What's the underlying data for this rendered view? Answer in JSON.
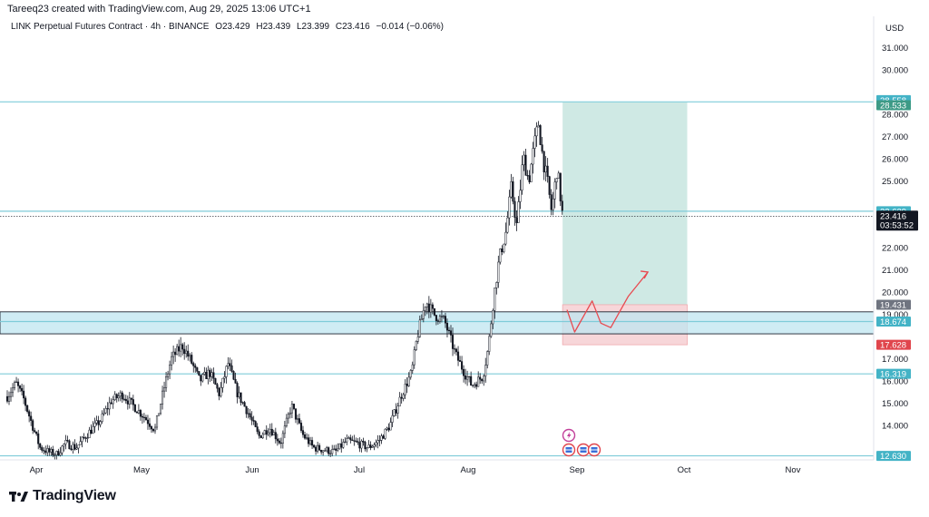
{
  "attribution": "Tareeq23 created with TradingView.com, Aug 29, 2025 13:06 UTC+1",
  "legend": {
    "symbol": "LINK Perpetual Futures Contract · 4h · BINANCE",
    "open": "O23.429",
    "high": "H23.439",
    "low": "L23.399",
    "close": "C23.416",
    "change": "−0.014 (−0.06%)"
  },
  "brand": "TradingView",
  "colors": {
    "candle": "#131722",
    "hline": "#7fcbd9",
    "zone_fill": "#bfe6f0",
    "target_fill": "#cfe9e4",
    "stop_fill": "#f7d6d9",
    "arrow": "#e8494f",
    "label_teal": "#43b3c6",
    "label_green": "#3d9a86",
    "label_red": "#e0454c",
    "label_gray": "#6f7480",
    "label_dark": "#131722"
  },
  "chart_data": {
    "type": "candlestick",
    "currency": "USD",
    "y_ticks": [
      "31.000",
      "30.000",
      "28.000",
      "27.000",
      "26.000",
      "25.000",
      "22.000",
      "21.000",
      "20.000",
      "19.000",
      "17.000",
      "16.000",
      "15.000",
      "14.000"
    ],
    "x_ticks": [
      "Apr",
      "May",
      "Jun",
      "Jul",
      "Aug",
      "Sep",
      "Oct",
      "Nov"
    ],
    "ylim": [
      12.4,
      31.7
    ],
    "price_path": [
      {
        "t": 0.0,
        "v": 15.3
      },
      {
        "t": 0.8,
        "v": 15.9
      },
      {
        "t": 1.5,
        "v": 15.2
      },
      {
        "t": 2.3,
        "v": 14.0
      },
      {
        "t": 3.0,
        "v": 13.0
      },
      {
        "t": 3.8,
        "v": 12.8
      },
      {
        "t": 4.5,
        "v": 12.7
      },
      {
        "t": 5.3,
        "v": 13.2
      },
      {
        "t": 6.3,
        "v": 13.0
      },
      {
        "t": 7.5,
        "v": 13.7
      },
      {
        "t": 8.5,
        "v": 14.2
      },
      {
        "t": 9.5,
        "v": 15.1
      },
      {
        "t": 10.5,
        "v": 15.4
      },
      {
        "t": 11.5,
        "v": 14.9
      },
      {
        "t": 12.5,
        "v": 14.4
      },
      {
        "t": 13.5,
        "v": 13.8
      },
      {
        "t": 14.3,
        "v": 15.6
      },
      {
        "t": 15.0,
        "v": 17.0
      },
      {
        "t": 16.0,
        "v": 17.6
      },
      {
        "t": 16.8,
        "v": 16.9
      },
      {
        "t": 17.6,
        "v": 16.0
      },
      {
        "t": 18.5,
        "v": 16.4
      },
      {
        "t": 19.4,
        "v": 15.4
      },
      {
        "t": 20.2,
        "v": 16.8
      },
      {
        "t": 21.0,
        "v": 15.5
      },
      {
        "t": 22.0,
        "v": 14.6
      },
      {
        "t": 23.0,
        "v": 13.5
      },
      {
        "t": 24.0,
        "v": 13.9
      },
      {
        "t": 25.0,
        "v": 13.2
      },
      {
        "t": 26.0,
        "v": 14.9
      },
      {
        "t": 27.0,
        "v": 13.6
      },
      {
        "t": 28.0,
        "v": 13.0
      },
      {
        "t": 29.0,
        "v": 12.9
      },
      {
        "t": 30.0,
        "v": 12.8
      },
      {
        "t": 31.0,
        "v": 13.3
      },
      {
        "t": 32.0,
        "v": 13.2
      },
      {
        "t": 33.0,
        "v": 13.0
      },
      {
        "t": 34.0,
        "v": 13.3
      },
      {
        "t": 35.0,
        "v": 14.0
      },
      {
        "t": 36.0,
        "v": 15.3
      },
      {
        "t": 37.0,
        "v": 16.4
      },
      {
        "t": 37.5,
        "v": 18.0
      },
      {
        "t": 38.3,
        "v": 19.6
      },
      {
        "t": 39.0,
        "v": 19.0
      },
      {
        "t": 40.0,
        "v": 18.7
      },
      {
        "t": 41.0,
        "v": 17.2
      },
      {
        "t": 41.8,
        "v": 16.4
      },
      {
        "t": 42.5,
        "v": 15.8
      },
      {
        "t": 43.5,
        "v": 16.2
      },
      {
        "t": 44.0,
        "v": 17.5
      },
      {
        "t": 44.5,
        "v": 19.8
      },
      {
        "t": 45.0,
        "v": 21.5
      },
      {
        "t": 45.6,
        "v": 22.7
      },
      {
        "t": 46.1,
        "v": 24.7
      },
      {
        "t": 46.6,
        "v": 23.0
      },
      {
        "t": 47.2,
        "v": 26.1
      },
      {
        "t": 47.7,
        "v": 25.0
      },
      {
        "t": 48.2,
        "v": 26.6
      },
      {
        "t": 48.6,
        "v": 27.6
      },
      {
        "t": 49.0,
        "v": 26.0
      },
      {
        "t": 49.4,
        "v": 25.0
      },
      {
        "t": 49.8,
        "v": 23.6
      },
      {
        "t": 50.3,
        "v": 25.6
      },
      {
        "t": 50.8,
        "v": 23.416
      }
    ],
    "horizontal_levels": [
      28.558,
      23.639,
      18.674,
      16.319,
      12.63
    ],
    "support_zone": {
      "top": 19.11,
      "bottom": 18.12
    },
    "position": {
      "entry": 19.431,
      "target": 28.533,
      "stop": 17.628
    },
    "projection": [
      {
        "t": 51.2,
        "v": 19.2
      },
      {
        "t": 51.9,
        "v": 18.2
      },
      {
        "t": 53.5,
        "v": 19.6
      },
      {
        "t": 54.3,
        "v": 18.6
      },
      {
        "t": 55.2,
        "v": 18.4
      },
      {
        "t": 56.8,
        "v": 19.8
      },
      {
        "t": 58.6,
        "v": 20.9
      }
    ],
    "labels": [
      {
        "text": "28.558",
        "kind": "teal",
        "v": 28.558
      },
      {
        "text": "28.533",
        "kind": "green",
        "v": 28.533
      },
      {
        "text": "23.639",
        "kind": "teal",
        "v": 23.639
      },
      {
        "text": "19.431",
        "kind": "gray",
        "v": 19.431
      },
      {
        "text": "18.674",
        "kind": "teal",
        "v": 18.674
      },
      {
        "text": "17.628",
        "kind": "red",
        "v": 17.628
      },
      {
        "text": "16.319",
        "kind": "teal",
        "v": 16.319
      },
      {
        "text": "12.630",
        "kind": "teal",
        "v": 12.63
      }
    ],
    "last_price": {
      "price": "23.416",
      "countdown": "03:53:52",
      "v": 23.416
    },
    "events": [
      {
        "icon": "lightning-icon"
      },
      {
        "icon": "flag-icon"
      },
      {
        "icon": "flag-icon"
      },
      {
        "icon": "flag-icon"
      }
    ]
  }
}
